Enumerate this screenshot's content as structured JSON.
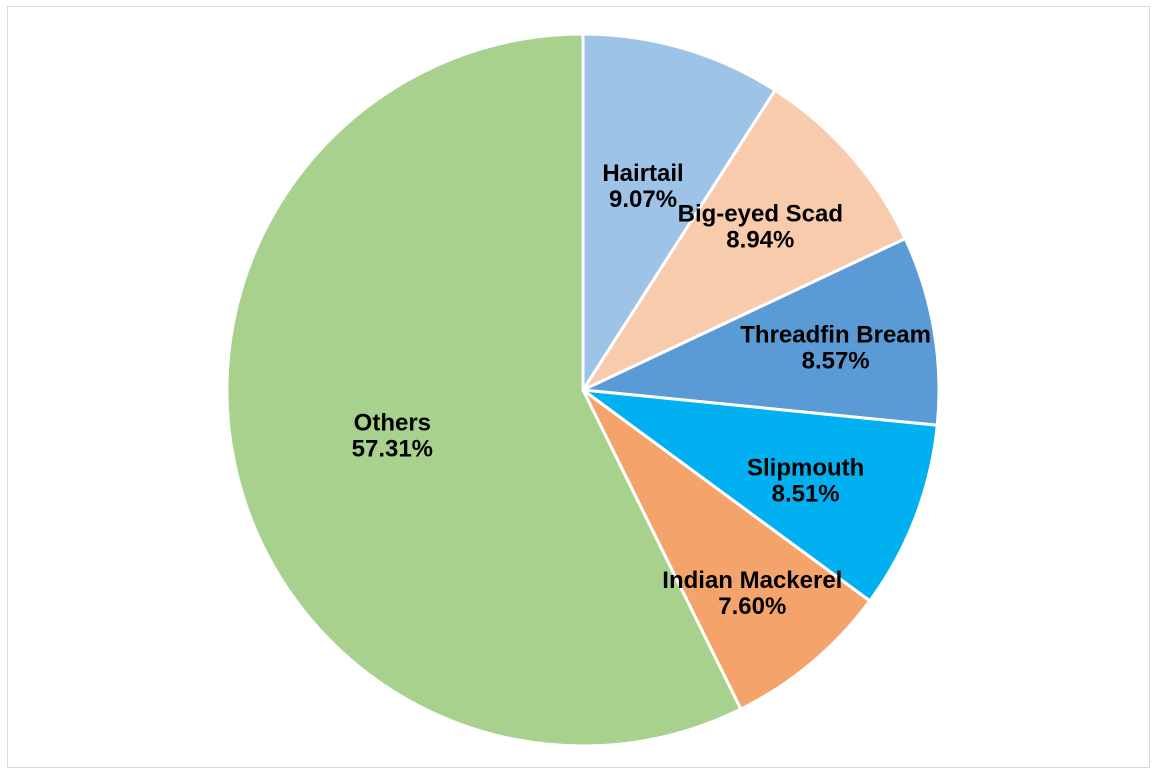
{
  "chart_data": {
    "type": "pie",
    "title": "",
    "categories": [
      "Hairtail",
      "Big-eyed Scad",
      "Threadfin Bream",
      "Slipmouth",
      "Indian Mackerel",
      "Others"
    ],
    "values": [
      9.07,
      8.94,
      8.57,
      8.51,
      7.6,
      57.31
    ],
    "percent_labels": [
      "9.07%",
      "8.94%",
      "8.57%",
      "8.51%",
      "7.60%",
      "57.31%"
    ],
    "colors": [
      "#9dc3e6",
      "#f8cbad",
      "#5b9bd5",
      "#00b0f0",
      "#f4a46b",
      "#a9d18e"
    ],
    "start_angle": "12 o'clock",
    "direction": "clockwise",
    "legend": "none",
    "data_labels": "inside, category name and percentage"
  }
}
